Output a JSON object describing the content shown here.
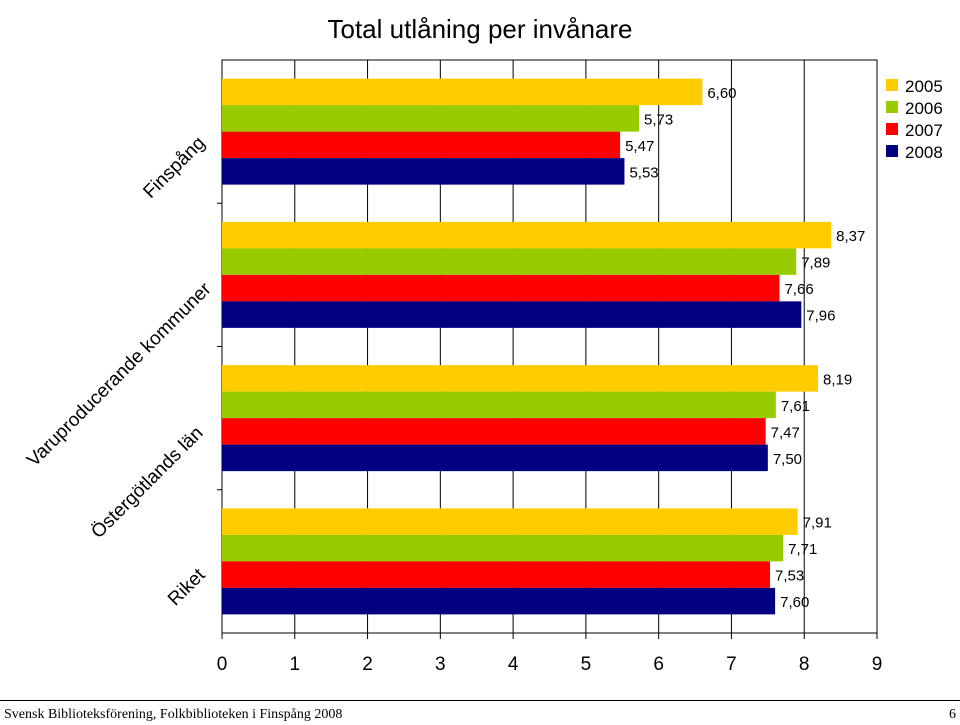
{
  "chart_data": {
    "type": "bar",
    "orientation": "horizontal",
    "title": "Total utlåning per invånare",
    "categories": [
      "Finspång",
      "Varuproducerande kommuner",
      "Östergötlands län",
      "Riket"
    ],
    "series": [
      {
        "name": "2005",
        "color": "#FFCC00",
        "values": [
          6.6,
          8.37,
          8.19,
          7.91
        ]
      },
      {
        "name": "2006",
        "color": "#99CC00",
        "values": [
          5.73,
          7.89,
          7.61,
          7.71
        ]
      },
      {
        "name": "2007",
        "color": "#FF0000",
        "values": [
          5.47,
          7.66,
          7.47,
          7.53
        ]
      },
      {
        "name": "2008",
        "color": "#000080",
        "values": [
          5.53,
          7.96,
          7.5,
          7.6
        ]
      }
    ],
    "data_labels": [
      [
        "6,60",
        "5,73",
        "5,47",
        "5,53"
      ],
      [
        "8,37",
        "7,89",
        "7,66",
        "7,96"
      ],
      [
        "8,19",
        "7,61",
        "7,47",
        "7,50"
      ],
      [
        "7,91",
        "7,71",
        "7,53",
        "7,60"
      ]
    ],
    "xlim": [
      0,
      9
    ],
    "ticks": [
      "0",
      "1",
      "2",
      "3",
      "4",
      "5",
      "6",
      "7",
      "8",
      "9"
    ],
    "grid": true,
    "legend": "top-right"
  },
  "footer": {
    "left": "Svensk Biblioteksförening, Folkbiblioteken i Finspång 2008",
    "right": "6"
  }
}
